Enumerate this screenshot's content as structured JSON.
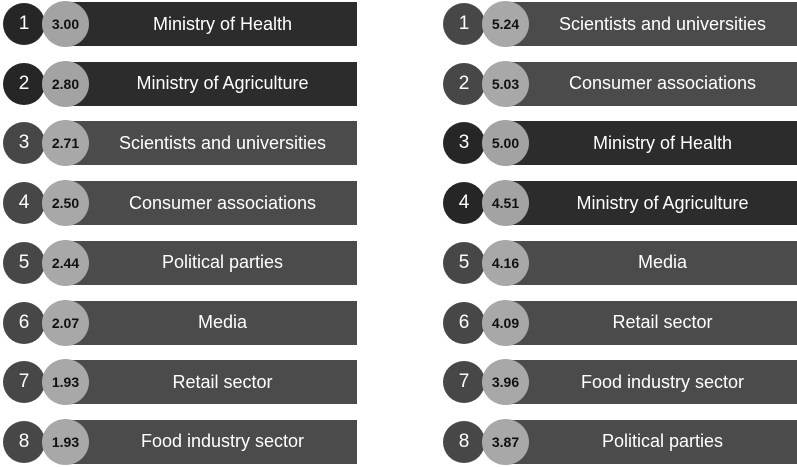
{
  "left_ranking": [
    {
      "rank": "1",
      "score": "3.00",
      "label": "Ministry of Health",
      "style": "dark"
    },
    {
      "rank": "2",
      "score": "2.80",
      "label": "Ministry of Agriculture",
      "style": "dark"
    },
    {
      "rank": "3",
      "score": "2.71",
      "label": "Scientists and universities",
      "style": "medium"
    },
    {
      "rank": "4",
      "score": "2.50",
      "label": "Consumer associations",
      "style": "medium"
    },
    {
      "rank": "5",
      "score": "2.44",
      "label": "Political parties",
      "style": "medium"
    },
    {
      "rank": "6",
      "score": "2.07",
      "label": "Media",
      "style": "medium"
    },
    {
      "rank": "7",
      "score": "1.93",
      "label": "Retail sector",
      "style": "medium"
    },
    {
      "rank": "8",
      "score": "1.93",
      "label": "Food industry sector",
      "style": "medium"
    }
  ],
  "right_ranking": [
    {
      "rank": "1",
      "score": "5.24",
      "label": "Scientists and universities",
      "style": "medium"
    },
    {
      "rank": "2",
      "score": "5.03",
      "label": "Consumer associations",
      "style": "medium"
    },
    {
      "rank": "3",
      "score": "5.00",
      "label": "Ministry of Health",
      "style": "dark"
    },
    {
      "rank": "4",
      "score": "4.51",
      "label": "Ministry of Agriculture",
      "style": "dark"
    },
    {
      "rank": "5",
      "score": "4.16",
      "label": "Media",
      "style": "medium"
    },
    {
      "rank": "6",
      "score": "4.09",
      "label": "Retail sector",
      "style": "medium"
    },
    {
      "rank": "7",
      "score": "3.96",
      "label": "Food industry sector",
      "style": "medium"
    },
    {
      "rank": "8",
      "score": "3.87",
      "label": "Political parties",
      "style": "medium"
    }
  ]
}
